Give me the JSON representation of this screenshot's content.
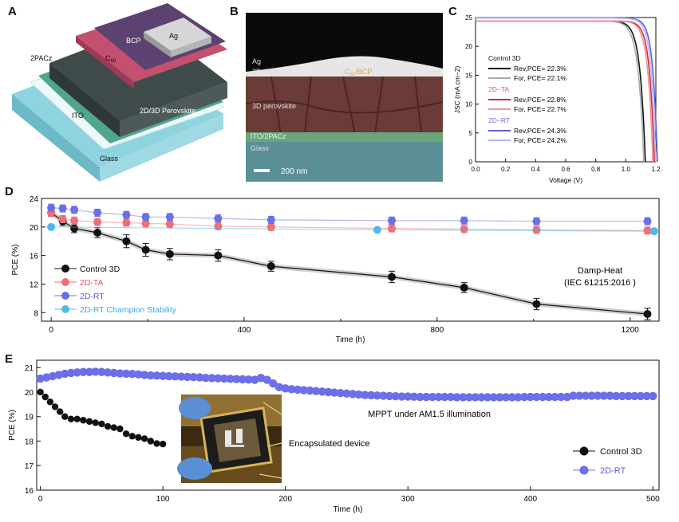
{
  "panels": {
    "a": "A",
    "b": "B",
    "c": "C",
    "d": "D",
    "e": "E"
  },
  "device_stack": {
    "layers": [
      "Ag",
      "BCP",
      "C60",
      "2PACz",
      "2D/3D Perovskite",
      "ITO",
      "Glass"
    ],
    "colors": {
      "glass": "#7ec8d6",
      "ito": "#e8f4f6",
      "pacz": "#4fa58e",
      "perovskite": "#3c4a4a",
      "c60": "#c2506e",
      "bcp": "#5a3f6e",
      "ag": "#c8c8c8"
    }
  },
  "sem": {
    "labels": [
      "Ag",
      "2D OLAI",
      "C60/BCP",
      "3D perovskite",
      "ITO/2PACz",
      "Glass"
    ],
    "scale_bar": "200 nm",
    "colors": {
      "top": "#0a0a0a",
      "ag": "#e8e8e8",
      "perovskite": "#6b3b38",
      "ito": "#6aa67a",
      "glass": "#5a8f95"
    }
  },
  "chart_data": [
    {
      "id": "C",
      "type": "line",
      "xlabel": "Voltage (V)",
      "ylabel": "JSC (mA cm−2)",
      "xlim": [
        0.0,
        1.2
      ],
      "ylim": [
        0,
        25
      ],
      "xticks": [
        0.0,
        0.2,
        0.4,
        0.6,
        0.8,
        1.0,
        1.2
      ],
      "yticks": [
        0,
        5,
        10,
        15,
        20,
        25
      ],
      "legend_groups": [
        {
          "title": "Control 3D",
          "color": "#111111",
          "entries": [
            {
              "label": "Rev,PCE= 22.3%",
              "color": "#111111"
            },
            {
              "label": "For, PCE= 22.1%",
              "color": "#aaaaaa"
            }
          ]
        },
        {
          "title": "2D−TA",
          "color": "#e05560",
          "entries": [
            {
              "label": "Rev,PCE= 22.8%",
              "color": "#cc2b36"
            },
            {
              "label": "For, PCE= 22.7%",
              "color": "#f0919a"
            }
          ]
        },
        {
          "title": "2D−RT",
          "color": "#6b6fd6",
          "entries": [
            {
              "label": "Rev,PCE= 24.3%",
              "color": "#5a5fe0"
            },
            {
              "label": "For, PCE= 24.2%",
              "color": "#b4b8f2"
            }
          ]
        }
      ],
      "series": [
        {
          "jsc": 24.4,
          "voc": 1.13,
          "k": 0.035,
          "color": "#111111"
        },
        {
          "jsc": 24.4,
          "voc": 1.12,
          "k": 0.037,
          "color": "#aaaaaa"
        },
        {
          "jsc": 24.4,
          "voc": 1.19,
          "k": 0.032,
          "color": "#cc2b36"
        },
        {
          "jsc": 24.4,
          "voc": 1.18,
          "k": 0.033,
          "color": "#f0919a"
        },
        {
          "jsc": 24.9,
          "voc": 1.21,
          "k": 0.03,
          "color": "#5a5fe0"
        },
        {
          "jsc": 24.9,
          "voc": 1.2,
          "k": 0.031,
          "color": "#b4b8f2"
        }
      ]
    },
    {
      "id": "D",
      "type": "scatter",
      "xlabel": "Time (h)",
      "ylabel": "PCE (%)",
      "xlim": [
        -20,
        1260
      ],
      "ylim": [
        6.8,
        24
      ],
      "xticks": [
        0,
        400,
        800,
        1200
      ],
      "xticks_minor": [
        200,
        600,
        1000
      ],
      "yticks": [
        8,
        12,
        16,
        20,
        24
      ],
      "annotation": [
        "Damp-Heat",
        "(IEC 61215:2016 )"
      ],
      "legend": [
        {
          "label": "Control 3D",
          "color": "#111111",
          "text_color": "#111111"
        },
        {
          "label": "2D-TA",
          "color": "#ef6e73",
          "text_color": "#e05560"
        },
        {
          "label": "2D-RT",
          "color": "#6b6fe8",
          "text_color": "#5a5fe0"
        },
        {
          "label": "2D-RT Champion Stability",
          "color": "#4fb9ea",
          "text_color": "#3aa9e0"
        }
      ],
      "series": [
        {
          "name": "Control 3D",
          "color": "#111111",
          "x": [
            0,
            24,
            48,
            96,
            156,
            196,
            246,
            346,
            456,
            706,
            856,
            1006,
            1236
          ],
          "y": [
            22.0,
            20.8,
            19.8,
            19.2,
            18.0,
            16.8,
            16.2,
            16.0,
            14.5,
            13.0,
            11.5,
            9.2,
            7.8
          ],
          "err": [
            0.5,
            0.6,
            0.6,
            0.7,
            0.9,
            0.9,
            0.8,
            0.8,
            0.7,
            0.8,
            0.7,
            0.8,
            0.8
          ]
        },
        {
          "name": "2D-TA",
          "color": "#ef6e73",
          "x": [
            0,
            24,
            48,
            96,
            156,
            196,
            246,
            346,
            456,
            706,
            856,
            1006,
            1236
          ],
          "y": [
            22.0,
            21.1,
            20.9,
            20.7,
            20.6,
            20.5,
            20.4,
            20.1,
            20.0,
            19.8,
            19.7,
            19.6,
            19.5
          ],
          "err": [
            0.5,
            0.5,
            0.5,
            0.5,
            0.5,
            0.5,
            0.5,
            0.5,
            0.5,
            0.5,
            0.5,
            0.5,
            0.5
          ]
        },
        {
          "name": "2D-RT",
          "color": "#6b6fe8",
          "x": [
            0,
            24,
            48,
            96,
            156,
            196,
            246,
            346,
            456,
            706,
            856,
            1006,
            1236
          ],
          "y": [
            22.7,
            22.6,
            22.4,
            22.0,
            21.7,
            21.4,
            21.4,
            21.2,
            21.0,
            20.9,
            20.9,
            20.8,
            20.8
          ],
          "err": [
            0.5,
            0.5,
            0.5,
            0.5,
            0.5,
            0.5,
            0.5,
            0.5,
            0.5,
            0.5,
            0.5,
            0.5,
            0.5
          ]
        },
        {
          "name": "2D-RT Champion Stability",
          "color": "#4fb9ea",
          "x": [
            0,
            676,
            1250
          ],
          "y": [
            20.0,
            19.6,
            19.4
          ],
          "err": [
            0,
            0,
            0
          ]
        }
      ]
    },
    {
      "id": "E",
      "type": "scatter",
      "xlabel": "Time (h)",
      "ylabel": "PCE (%)",
      "xlim": [
        -3,
        505
      ],
      "ylim": [
        16,
        21.3
      ],
      "xticks": [
        0,
        100,
        200,
        300,
        400,
        500
      ],
      "yticks": [
        16,
        17,
        18,
        19,
        20,
        21
      ],
      "annotation": "MPPT under AM1.5 illumination",
      "inset_label": "Encapsulated device",
      "legend": [
        {
          "label": "Control 3D",
          "color": "#111111"
        },
        {
          "label": "2D-RT",
          "color": "#6b6fe8"
        }
      ],
      "series": [
        {
          "name": "Control 3D",
          "color": "#111111",
          "x": [
            0,
            4,
            8,
            12,
            16,
            20,
            25,
            30,
            35,
            40,
            45,
            50,
            55,
            60,
            65,
            70,
            75,
            80,
            85,
            90,
            95,
            100
          ],
          "y": [
            20.0,
            19.8,
            19.6,
            19.4,
            19.2,
            19.0,
            18.9,
            18.9,
            18.85,
            18.8,
            18.75,
            18.7,
            18.6,
            18.55,
            18.5,
            18.3,
            18.2,
            18.15,
            18.1,
            18.0,
            17.9,
            17.88
          ]
        },
        {
          "name": "2D-RT",
          "color": "#6b6fe8",
          "start": 0,
          "step": 5,
          "y": [
            20.55,
            20.6,
            20.65,
            20.7,
            20.75,
            20.78,
            20.8,
            20.82,
            20.82,
            20.83,
            20.82,
            20.8,
            20.78,
            20.76,
            20.75,
            20.74,
            20.72,
            20.7,
            20.68,
            20.67,
            20.66,
            20.65,
            20.64,
            20.63,
            20.62,
            20.61,
            20.6,
            20.58,
            20.57,
            20.56,
            20.55,
            20.54,
            20.53,
            20.52,
            20.51,
            20.5,
            20.58,
            20.5,
            20.35,
            20.2,
            20.15,
            20.12,
            20.1,
            20.08,
            20.06,
            20.04,
            20.02,
            20.0,
            19.98,
            19.96,
            19.94,
            19.92,
            19.9,
            19.88,
            19.87,
            19.86,
            19.85,
            19.84,
            19.83,
            19.82,
            19.82,
            19.81,
            19.8,
            19.8,
            19.8,
            19.8,
            19.8,
            19.8,
            19.79,
            19.79,
            19.79,
            19.79,
            19.79,
            19.79,
            19.79,
            19.79,
            19.79,
            19.79,
            19.79,
            19.8,
            19.8,
            19.8,
            19.8,
            19.8,
            19.8,
            19.8,
            19.8,
            19.85,
            19.85,
            19.85,
            19.85,
            19.85,
            19.85,
            19.85,
            19.84,
            19.84,
            19.84,
            19.84,
            19.84,
            19.84,
            19.84
          ]
        }
      ]
    }
  ]
}
